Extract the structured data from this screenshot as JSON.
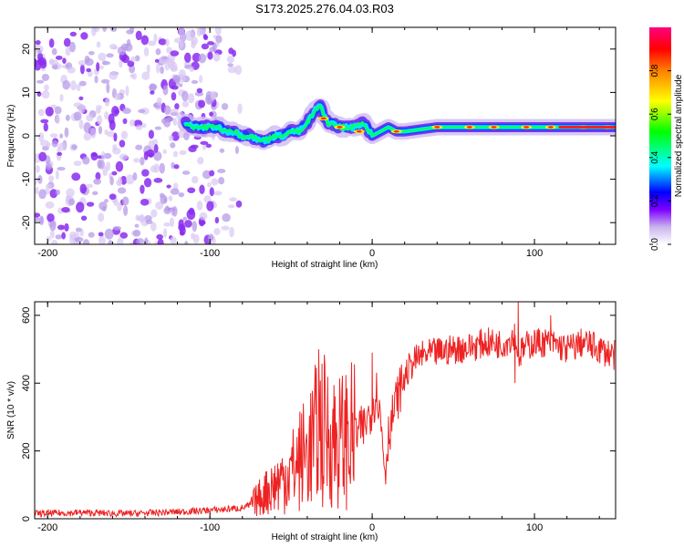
{
  "figure": {
    "title": "S173.2025.276.04.03.R03"
  },
  "chart_data": [
    {
      "type": "heatmap",
      "title": "S173.2025.276.04.03.R03",
      "xlabel": "Height of straight line (km)",
      "ylabel": "Frequency (Hz)",
      "xlim": [
        -208,
        150
      ],
      "ylim": [
        -25,
        25
      ],
      "x_ticks": [
        -200,
        -100,
        0,
        100
      ],
      "y_ticks": [
        -20,
        -10,
        0,
        10,
        20
      ],
      "x_tick_labels": [
        "-200",
        "-100",
        "0",
        "100"
      ],
      "y_tick_labels": [
        "-20",
        "-10",
        "0",
        "10",
        "20"
      ],
      "grid": false,
      "colorbar": {
        "label": "Normalized spectral amplitude",
        "range": [
          0,
          1
        ],
        "ticks": [
          0.0,
          0.2,
          0.4,
          0.6,
          0.8
        ],
        "tick_labels": [
          "0.0",
          "0.2",
          "0.4",
          "0.6",
          "0.8"
        ],
        "colors": [
          "#ffffff",
          "#c9b3ee",
          "#7f00ff",
          "#0000ff",
          "#00ffff",
          "#00ff00",
          "#ffff00",
          "#ff8000",
          "#ff0000",
          "#ff0080"
        ]
      },
      "ridge_line": {
        "description_values": "Dominant frequency (Hz) versus height (km)",
        "x": [
          -115,
          -110,
          -100,
          -95,
          -90,
          -85,
          -80,
          -75,
          -70,
          -65,
          -60,
          -55,
          -50,
          -45,
          -40,
          -35,
          -32,
          -30,
          -27,
          -25,
          -20,
          -15,
          -10,
          -5,
          0,
          5,
          10,
          15,
          20,
          40,
          60,
          80,
          100,
          120,
          150
        ],
        "y": [
          3,
          2,
          2,
          2,
          1,
          1,
          0,
          0,
          -1,
          -1,
          0,
          0,
          1,
          1,
          3,
          6,
          7,
          5,
          3,
          3,
          2,
          2,
          2,
          3,
          0,
          1,
          2,
          1,
          1,
          2,
          2,
          2,
          2,
          2,
          2
        ]
      },
      "noise_region_x": [
        -208,
        -80
      ]
    },
    {
      "type": "line",
      "xlabel": "Height of straight line (km)",
      "ylabel": "SNR (10 * v/v)",
      "xlim": [
        -208,
        150
      ],
      "ylim": [
        0,
        640
      ],
      "x_ticks": [
        -200,
        -100,
        0,
        100
      ],
      "y_ticks": [
        0,
        200,
        400,
        600
      ],
      "x_tick_labels": [
        "-200",
        "-100",
        "0",
        "100"
      ],
      "y_tick_labels": [
        "0",
        "200",
        "400",
        "600"
      ],
      "grid": false,
      "series": [
        {
          "name": "SNR",
          "color": "#ee2222",
          "x": [
            -208,
            -180,
            -150,
            -120,
            -100,
            -90,
            -80,
            -75,
            -70,
            -65,
            -60,
            -55,
            -50,
            -45,
            -40,
            -35,
            -33,
            -30,
            -25,
            -20,
            -15,
            -10,
            -5,
            0,
            3,
            5,
            7,
            8,
            10,
            15,
            20,
            25,
            30,
            40,
            50,
            60,
            70,
            80,
            85,
            88,
            90,
            95,
            100,
            110,
            120,
            130,
            140,
            150
          ],
          "y": [
            15,
            18,
            15,
            20,
            25,
            28,
            32,
            40,
            60,
            80,
            100,
            120,
            140,
            170,
            200,
            240,
            270,
            260,
            240,
            230,
            240,
            250,
            270,
            330,
            380,
            300,
            200,
            140,
            250,
            350,
            420,
            460,
            480,
            490,
            500,
            505,
            520,
            515,
            530,
            545,
            480,
            510,
            520,
            520,
            500,
            520,
            500,
            480
          ]
        }
      ],
      "spikes": {
        "x": [
          -33,
          0,
          -65,
          88,
          90,
          110
        ],
        "y": [
          500,
          490,
          140,
          400,
          640,
          600
        ]
      }
    }
  ]
}
